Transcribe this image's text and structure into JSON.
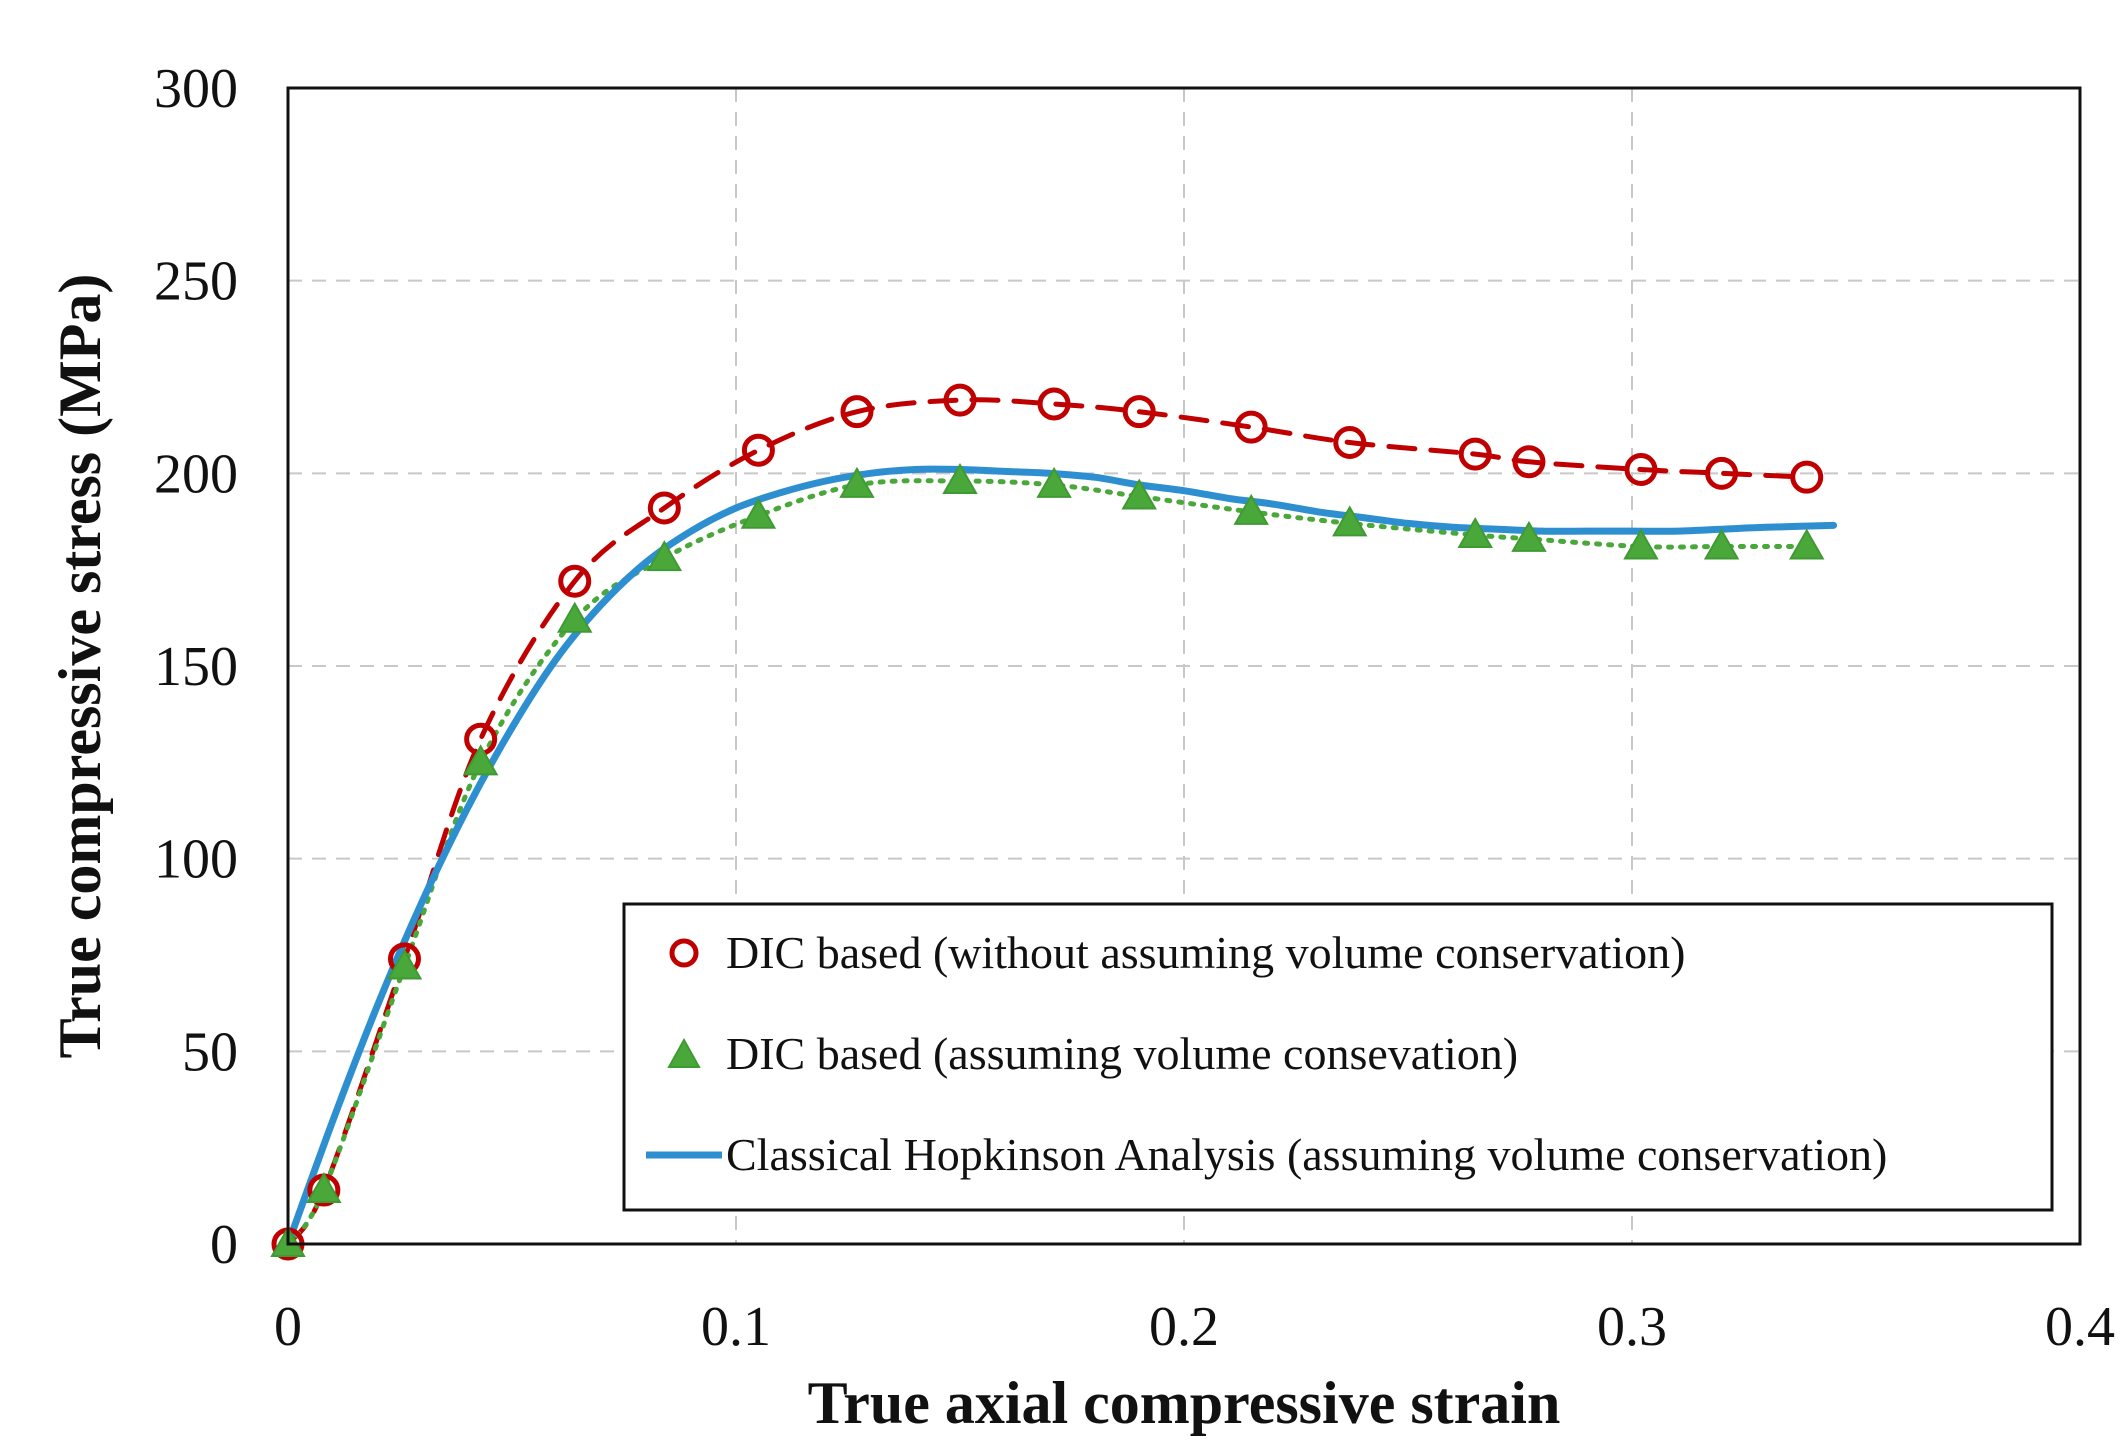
{
  "chart_data": {
    "type": "line",
    "title": "",
    "xlabel": "True axial compressive strain",
    "ylabel": "True compressive stress (MPa)",
    "xlim": [
      0,
      0.4
    ],
    "ylim": [
      0,
      300
    ],
    "xticks": [
      0,
      0.1,
      0.2,
      0.3,
      0.4
    ],
    "xtick_labels": [
      "0",
      "0.1",
      "0.2",
      "0.3",
      "0.4"
    ],
    "yticks": [
      0,
      50,
      100,
      150,
      200,
      250,
      300
    ],
    "ytick_labels": [
      "0",
      "50",
      "100",
      "150",
      "200",
      "250",
      "300"
    ],
    "grid": true,
    "legend_position": "bottom-right",
    "series": [
      {
        "name": "DIC based (without assuming volume conservation)",
        "marker": "circle-open",
        "line": "dashed",
        "color": "#c00000",
        "x": [
          0,
          0.008,
          0.026,
          0.043,
          0.064,
          0.084,
          0.105,
          0.127,
          0.15,
          0.171,
          0.19,
          0.215,
          0.237,
          0.265,
          0.277,
          0.302,
          0.32,
          0.339
        ],
        "y": [
          0,
          14,
          74,
          131,
          172,
          191,
          206,
          216,
          219,
          218,
          216,
          212,
          208,
          205,
          203,
          201,
          200,
          199
        ]
      },
      {
        "name": "DIC based (assuming volume consevation)",
        "marker": "triangle",
        "line": "dotted",
        "color": "#4aa83b",
        "x": [
          0,
          0.008,
          0.026,
          0.043,
          0.064,
          0.084,
          0.105,
          0.127,
          0.15,
          0.171,
          0.19,
          0.215,
          0.237,
          0.265,
          0.277,
          0.302,
          0.32,
          0.339
        ],
        "y": [
          0,
          14,
          72,
          125,
          162,
          178,
          189,
          197,
          198,
          197,
          194,
          190,
          187,
          184,
          183,
          181,
          181,
          181
        ]
      },
      {
        "name": "Classical Hopkinson Analysis (assuming volume conservation)",
        "marker": "none",
        "line": "solid",
        "color": "#2e8fd0",
        "x": [
          0,
          0.01,
          0.02,
          0.03,
          0.04,
          0.05,
          0.06,
          0.07,
          0.08,
          0.09,
          0.1,
          0.11,
          0.12,
          0.13,
          0.14,
          0.15,
          0.16,
          0.17,
          0.18,
          0.19,
          0.2,
          0.21,
          0.22,
          0.23,
          0.24,
          0.25,
          0.26,
          0.27,
          0.28,
          0.29,
          0.3,
          0.31,
          0.32,
          0.33,
          0.345
        ],
        "y": [
          0,
          32,
          62,
          89,
          113,
          134,
          152,
          166,
          177,
          185,
          191,
          195,
          198,
          200,
          201,
          201,
          200.5,
          200,
          199,
          197,
          195.5,
          193.5,
          192,
          190,
          188.5,
          187,
          186,
          185.5,
          185,
          185,
          185,
          185,
          185.5,
          186,
          186.5
        ]
      }
    ]
  }
}
